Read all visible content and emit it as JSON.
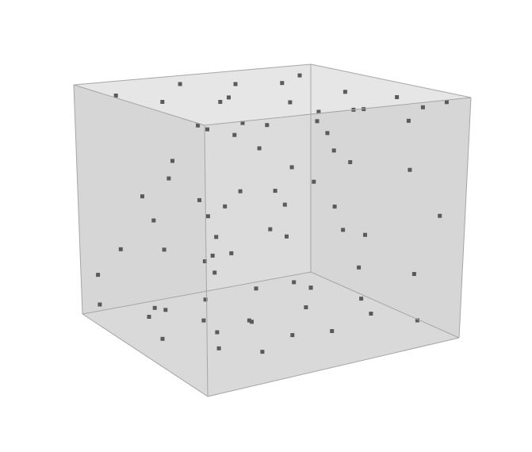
{
  "chart_data": {
    "type": "scatter",
    "title": "",
    "xlabel": "",
    "ylabel": "",
    "zlabel": "",
    "xlim": [
      0,
      1
    ],
    "ylim": [
      0,
      1
    ],
    "zlim": [
      0,
      1
    ],
    "grid": false,
    "colors": {
      "background": "#ffffff",
      "face_back": "#dcdcdc",
      "face_side": "#d6d6d6",
      "face_floor": "#d9d9d9",
      "face_front": "#e6e6e6",
      "edge": "#a6a6a6",
      "point": "#5a5a5a"
    },
    "points": [
      [
        0.02,
        0.02,
        0.98
      ],
      [
        0.25,
        0.03,
        0.97
      ],
      [
        0.45,
        0.05,
        0.96
      ],
      [
        0.62,
        0.04,
        0.99
      ],
      [
        0.85,
        0.05,
        0.97
      ],
      [
        0.97,
        0.1,
        0.97
      ],
      [
        0.1,
        0.25,
        0.95
      ],
      [
        0.3,
        0.3,
        0.93
      ],
      [
        0.55,
        0.22,
        0.96
      ],
      [
        0.72,
        0.28,
        0.94
      ],
      [
        0.9,
        0.3,
        0.97
      ],
      [
        0.35,
        0.55,
        0.97
      ],
      [
        0.6,
        0.5,
        0.95
      ],
      [
        0.85,
        0.55,
        0.96
      ],
      [
        0.2,
        0.7,
        0.96
      ],
      [
        0.5,
        0.75,
        0.94
      ],
      [
        0.75,
        0.8,
        0.97
      ],
      [
        0.12,
        0.9,
        0.96
      ],
      [
        0.4,
        0.92,
        0.98
      ],
      [
        0.65,
        0.95,
        0.95
      ],
      [
        0.9,
        0.92,
        0.97
      ],
      [
        0.05,
        0.35,
        0.8
      ],
      [
        0.06,
        0.4,
        0.72
      ],
      [
        0.03,
        0.55,
        0.62
      ],
      [
        0.1,
        0.6,
        0.5
      ],
      [
        0.04,
        0.75,
        0.35
      ],
      [
        0.02,
        0.9,
        0.2
      ],
      [
        0.35,
        0.45,
        0.85
      ],
      [
        0.4,
        0.5,
        0.6
      ],
      [
        0.3,
        0.62,
        0.55
      ],
      [
        0.38,
        0.7,
        0.45
      ],
      [
        0.25,
        0.8,
        0.3
      ],
      [
        0.45,
        0.85,
        0.2
      ],
      [
        0.55,
        0.4,
        0.7
      ],
      [
        0.6,
        0.6,
        0.55
      ],
      [
        0.5,
        0.85,
        0.3
      ],
      [
        0.75,
        0.5,
        0.8
      ],
      [
        0.7,
        0.7,
        0.45
      ],
      [
        0.8,
        0.85,
        0.25
      ],
      [
        0.95,
        0.6,
        0.15
      ],
      [
        0.85,
        0.55,
        0.35
      ],
      [
        0.15,
        0.15,
        0.65
      ],
      [
        0.2,
        0.2,
        0.45
      ],
      [
        0.05,
        0.05,
        0.5
      ],
      [
        0.08,
        0.08,
        0.2
      ],
      [
        0.3,
        0.1,
        0.55
      ],
      [
        0.45,
        0.08,
        0.3
      ],
      [
        0.55,
        0.1,
        0.6
      ],
      [
        0.7,
        0.15,
        0.45
      ],
      [
        0.85,
        0.12,
        0.7
      ],
      [
        0.95,
        0.08,
        0.5
      ],
      [
        0.9,
        0.15,
        0.25
      ],
      [
        0.6,
        0.2,
        0.8
      ],
      [
        0.3,
        0.18,
        0.85
      ],
      [
        0.2,
        0.3,
        0.05
      ],
      [
        0.35,
        0.25,
        0.02
      ],
      [
        0.5,
        0.3,
        0.04
      ],
      [
        0.65,
        0.28,
        0.03
      ],
      [
        0.82,
        0.3,
        0.06
      ],
      [
        0.1,
        0.55,
        0.03
      ],
      [
        0.3,
        0.6,
        0.05
      ],
      [
        0.48,
        0.58,
        0.02
      ],
      [
        0.7,
        0.55,
        0.04
      ],
      [
        0.9,
        0.5,
        0.05
      ],
      [
        0.25,
        0.8,
        0.04
      ],
      [
        0.45,
        0.85,
        0.03
      ],
      [
        0.65,
        0.82,
        0.05
      ],
      [
        0.85,
        0.88,
        0.02
      ],
      [
        0.05,
        0.95,
        0.05
      ],
      [
        0.15,
        0.7,
        0.1
      ],
      [
        0.95,
        0.2,
        0.03
      ],
      [
        0.78,
        0.65,
        0.08
      ],
      [
        0.4,
        0.42,
        0.08
      ],
      [
        0.02,
        0.5,
        0.15
      ],
      [
        0.55,
        0.95,
        0.1
      ],
      [
        0.98,
        0.95,
        0.45
      ],
      [
        0.97,
        0.7,
        0.6
      ],
      [
        0.98,
        0.35,
        0.85
      ]
    ]
  }
}
